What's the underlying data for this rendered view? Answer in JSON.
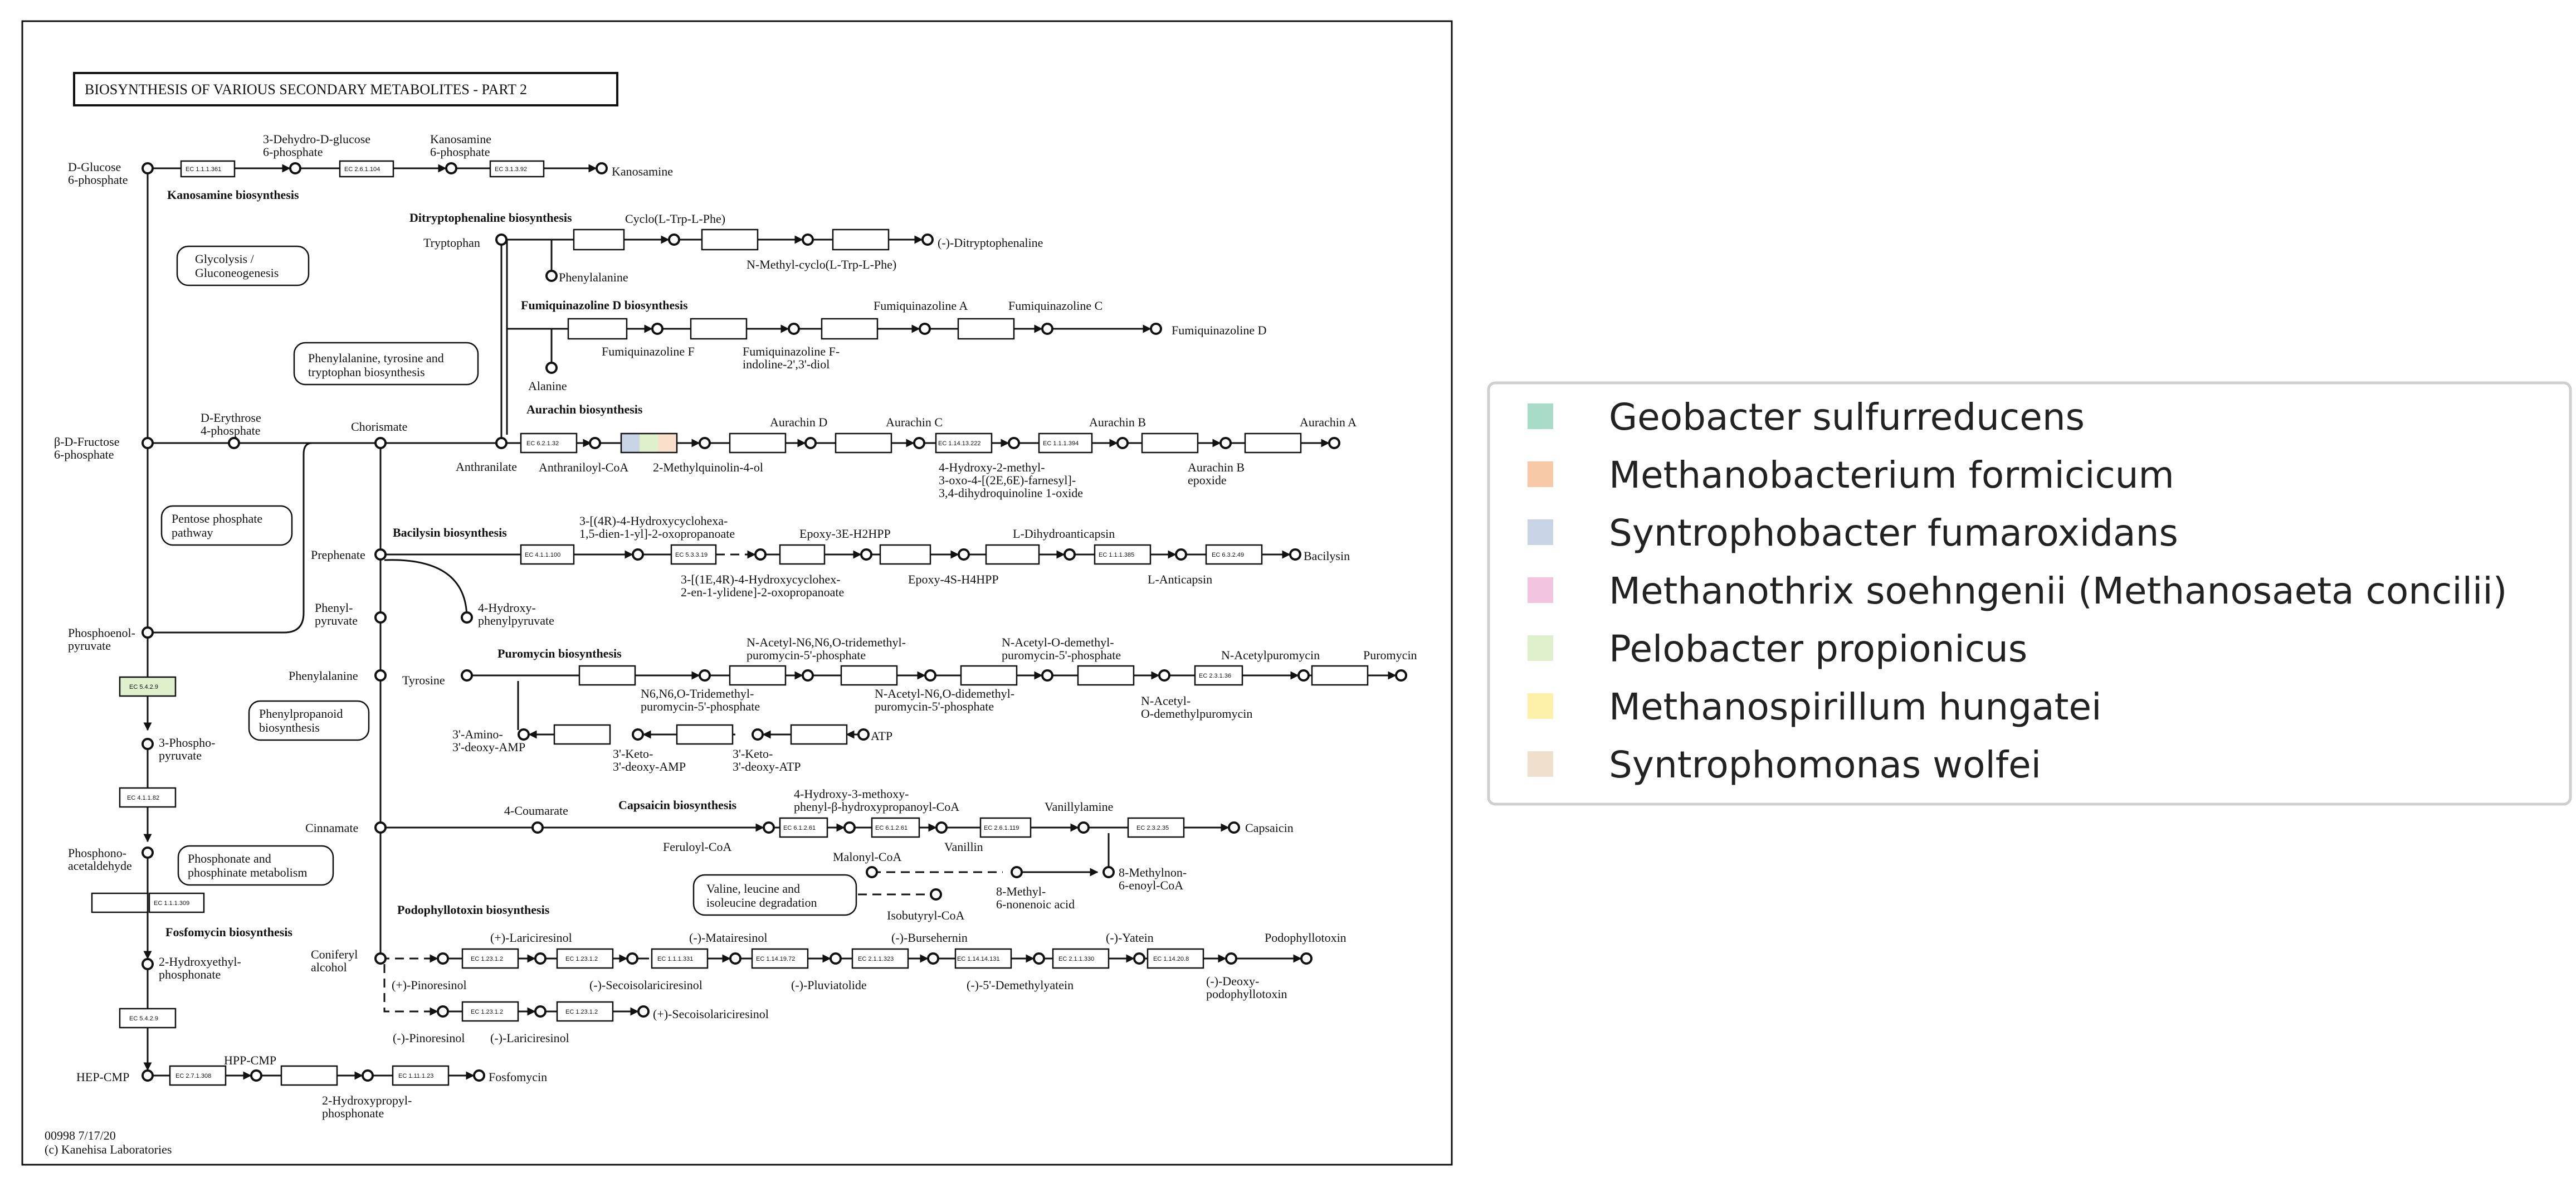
{
  "map": {
    "title": "BIOSYNTHESIS OF VARIOUS SECONDARY METABOLITES - PART 2",
    "footer_id": "00998 7/17/20",
    "footer_copy": "(c) Kanehisa Laboratories"
  },
  "compounds": {
    "d_glucose_6p": [
      "D-Glucose",
      "6-phosphate"
    ],
    "dehydro_glucose_6p": [
      "3-Dehydro-D-glucose",
      "6-phosphate"
    ],
    "kanosamine_6p": [
      "Kanosamine",
      "6-phosphate"
    ],
    "kanosamine": "Kanosamine",
    "tryptophan": "Tryptophan",
    "cyclo_trp_phe": "Cyclo(L-Trp-L-Phe)",
    "phenylalanine_1": "Phenylalanine",
    "n_methyl_cyclo": "N-Methyl-cyclo(L-Trp-L-Phe)",
    "ditryptophenaline": "(-)-Ditryptophenaline",
    "fumiquinazoline_a": "Fumiquinazoline A",
    "fumiquinazoline_c": "Fumiquinazoline C",
    "fumiquinazoline_d": "Fumiquinazoline D",
    "fumiquinazoline_f": "Fumiquinazoline F",
    "fumiquinazoline_f_diol": [
      "Fumiquinazoline F-",
      "indoline-2',3'-diol"
    ],
    "alanine": "Alanine",
    "beta_d_fructose_6p": [
      "β-D-Fructose",
      "6-phosphate"
    ],
    "d_erythrose_4p": [
      "D-Erythrose",
      "4-phosphate"
    ],
    "chorismate": "Chorismate",
    "anthranilate": "Anthranilate",
    "anthraniloyl_coa": "Anthraniloyl-CoA",
    "methylquinolinol": "2-Methylquinolin-4-ol",
    "aurachin_d": "Aurachin D",
    "aurachin_c": "Aurachin C",
    "aurachin_b": "Aurachin B",
    "aurachin_a": "Aurachin A",
    "aurachin_b_epoxide": [
      "Aurachin B",
      "epoxide"
    ],
    "hydroxy_farnesyl": [
      "4-Hydroxy-2-methyl-",
      "3-oxo-4-[(2E,6E)-farnesyl]-",
      "3,4-dihydroquinoline 1-oxide"
    ],
    "prephenate": "Prephenate",
    "hydroxycyclohexa": [
      "3-[(4R)-4-Hydroxycyclohexa-",
      "1,5-dien-1-yl]-2-oxopropanoate"
    ],
    "hydroxycyclohexylidene": [
      "3-[(1E,4R)-4-Hydroxycyclohex-",
      "2-en-1-ylidene]-2-oxopropanoate"
    ],
    "epoxy_h2hpp": "Epoxy-3E-H2HPP",
    "epoxy_h4hpp": "Epoxy-4S-H4HPP",
    "dihydroanticapsin": "L-Dihydroanticapsin",
    "anticapsin": "L-Anticapsin",
    "bacilysin": "Bacilysin",
    "phenylpyruvate": [
      "Phenyl-",
      "pyruvate"
    ],
    "hydroxyphenylpyruvate": [
      "4-Hydroxy-",
      "phenylpyruvate"
    ],
    "phosphoenolpyruvate": [
      "Phosphoenol-",
      "pyruvate"
    ],
    "phenylalanine_2": "Phenylalanine",
    "tyrosine": "Tyrosine",
    "tridemethyl_puro": [
      "N-Acetyl-N6,N6,O-tridemethyl-",
      "puromycin-5'-phosphate"
    ],
    "n6n6o_tridemethyl": [
      "N6,N6,O-Tridemethyl-",
      "puromycin-5'-phosphate"
    ],
    "didemethyl_puro": [
      "N-Acetyl-N6,O-didemethyl-",
      "puromycin-5'-phosphate"
    ],
    "o_demethyl_puro_p": [
      "N-Acetyl-O-demethyl-",
      "puromycin-5'-phosphate"
    ],
    "o_demethylpuromycin": [
      "N-Acetyl-",
      "O-demethylpuromycin"
    ],
    "n_acetylpuromycin": "N-Acetylpuromycin",
    "puromycin": "Puromycin",
    "amino_deoxy_amp": [
      "3'-Amino-",
      "3'-deoxy-AMP"
    ],
    "keto_deoxy_amp": [
      "3'-Keto-",
      "3'-deoxy-AMP"
    ],
    "keto_deoxy_atp": [
      "3'-Keto-",
      "3'-deoxy-ATP"
    ],
    "atp": "ATP",
    "phosphonopyruvate": [
      "3-Phospho-",
      "pyruvate"
    ],
    "phosphonoacetaldehyde": [
      "Phosphono-",
      "acetaldehyde"
    ],
    "cinnamate": "Cinnamate",
    "coumarate": "4-Coumarate",
    "feruloyl_coa": "Feruloyl-CoA",
    "hydroxy_methoxy_coa": [
      "4-Hydroxy-3-methoxy-",
      "phenyl-β-hydroxypropanoyl-CoA"
    ],
    "vanillin": "Vanillin",
    "vanillylamine": "Vanillylamine",
    "capsaicin": "Capsaicin",
    "malonyl_coa": "Malonyl-CoA",
    "methylnonenoyl_coa": [
      "8-Methylnon-",
      "6-enoyl-CoA"
    ],
    "methyl_nonenoic": [
      "8-Methyl-",
      "6-nonenoic acid"
    ],
    "isobutyryl_coa": "Isobutyryl-CoA",
    "hydroxyethylphosphonate": [
      "2-Hydroxyethyl-",
      "phosphonate"
    ],
    "coniferyl_alcohol": [
      "Coniferyl",
      "alcohol"
    ],
    "lariciresinol_p": "(+)-Lariciresinol",
    "matairesinol": "(-)-Matairesinol",
    "bursehernin": "(-)-Bursehernin",
    "yatein": "(-)-Yatein",
    "podophyllotoxin": "Podophyllotoxin",
    "pinoresinol_p": "(+)-Pinoresinol",
    "secoisolariciresinol_m": "(-)-Secoisolariciresinol",
    "pluviatolide": "(-)-Pluviatolide",
    "demethylyatein": "(-)-5'-Demethylyatein",
    "deoxypodophyllotoxin": [
      "(-)-Deoxy-",
      "podophyllotoxin"
    ],
    "pinoresinol_m": "(-)-Pinoresinol",
    "lariciresinol_m": "(-)-Lariciresinol",
    "secoisolariciresinol_p": "(+)-Secoisolariciresinol",
    "hep_cmp": "HEP-CMP",
    "hpp_cmp": "HPP-CMP",
    "hydroxypropylphosphonate": [
      "2-Hydroxypropyl-",
      "phosphonate"
    ],
    "fosfomycin": "Fosfomycin"
  },
  "sections": {
    "kanosamine": "Kanosamine biosynthesis",
    "ditryptophenaline": "Ditryptophenaline biosynthesis",
    "fumiquinazoline": "Fumiquinazoline D biosynthesis",
    "aurachin": "Aurachin biosynthesis",
    "bacilysin": "Bacilysin biosynthesis",
    "puromycin": "Puromycin biosynthesis",
    "capsaicin": "Capsaicin biosynthesis",
    "podophyllotoxin": "Podophyllotoxin biosynthesis",
    "fosfomycin": "Fosfomycin biosynthesis"
  },
  "map_links": {
    "glycolysis": [
      "Glycolysis /",
      "Gluconeogenesis"
    ],
    "phe_tyr_trp": [
      "Phenylalanine, tyrosine and",
      "tryptophan biosynthesis"
    ],
    "pentose": [
      "Pentose phosphate",
      "pathway"
    ],
    "phenylpropanoid": [
      "Phenylpropanoid",
      "biosynthesis"
    ],
    "phosphonate": [
      "Phosphonate and",
      "phosphinate metabolism"
    ],
    "val_leu_ile": [
      "Valine, leucine and",
      "isoleucine degradation"
    ]
  },
  "enzymes": {
    "e1": "EC 1.1.1.361",
    "e2": "EC 2.6.1.104",
    "e3": "EC 3.1.3.92",
    "e4": "EC 6.2.1.32",
    "e5": "EC 1.14.13.222",
    "e6": "EC 1.1.1.394",
    "e7": "EC 4.1.1.100",
    "e8": "EC 5.3.3.19",
    "e9": "EC 1.1.1.385",
    "e10": "EC 6.3.2.49",
    "e11": "EC 5.4.2.9",
    "e12": "EC 4.1.1.82",
    "e13": "EC 1.1.1.309",
    "e14": "EC 2.3.1.36",
    "e15": "EC 6.1.2.61",
    "e16": "EC 6.1.2.61",
    "e17": "EC 2.6.1.119",
    "e18": "EC 2.3.2.35",
    "e19": "EC 1.23.1.2",
    "e20": "EC 1.23.1.2",
    "e21": "EC 1.1.1.331",
    "e22": "EC 1.14.19.72",
    "e23": "EC 2.1.1.323",
    "e24": "EC 1.14.14.131",
    "e25": "EC 2.1.1.330",
    "e26": "EC 1.14.20.8",
    "e27": "EC 1.23.1.2",
    "e28": "EC 1.23.1.2",
    "e29": "EC 1.23.1.2",
    "e30": "EC 5.4.2.9",
    "e31": "EC 2.7.1.308",
    "e32": "EC 1.11.1.23"
  },
  "legend": {
    "title": "",
    "items": [
      {
        "name": "Geobacter sulfurreducens",
        "color": "#a8dcc7"
      },
      {
        "name": "Methanobacterium formicicum",
        "color": "#f7c9a6"
      },
      {
        "name": "Syntrophobacter fumaroxidans",
        "color": "#c8d4e6"
      },
      {
        "name": "Methanothrix soehngenii (Methanosaeta concilii)",
        "color": "#f2c4e0"
      },
      {
        "name": "Pelobacter propionicus",
        "color": "#dff0cc"
      },
      {
        "name": "Methanospirillum hungatei",
        "color": "#fdf0a8"
      },
      {
        "name": "Syntrophomonas wolfei",
        "color": "#efe0cd"
      }
    ]
  },
  "highlights": {
    "pelobacter_fill": "#dff0cc",
    "geobacter_fill": "#a8dcc7",
    "syntrophobacter_fill": "#c8d4e6",
    "methanobacterium_fill": "#f7c9a6"
  }
}
